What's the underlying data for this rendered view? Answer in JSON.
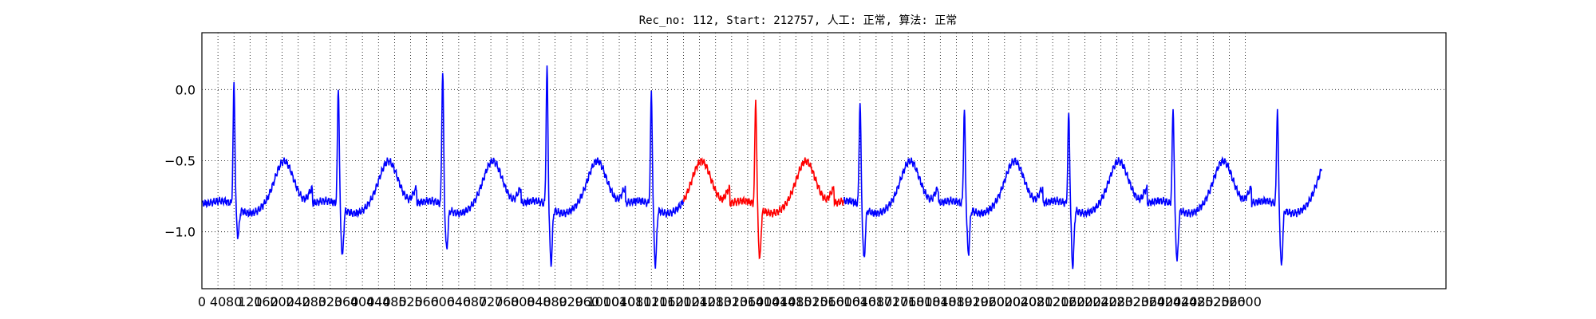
{
  "chart_data": {
    "type": "line",
    "title": "Rec_no: 112, Start: 212757, 人工: 正常, 算法: 正常",
    "xlabel": "",
    "ylabel": "",
    "xlim": [
      0,
      3100
    ],
    "ylim": [
      -1.4,
      0.4
    ],
    "yticks": [
      0.0,
      -0.5,
      -1.0
    ],
    "ytick_labels": [
      "0.0",
      "−0.5",
      "−1.0"
    ],
    "xticks": [
      0,
      40,
      80,
      120,
      160,
      200,
      240,
      280,
      320,
      360,
      400,
      440,
      480,
      520,
      560,
      600,
      640,
      680,
      720,
      760,
      800,
      840,
      880,
      920,
      960,
      1000,
      1040,
      1080,
      1120,
      1160,
      1200,
      1240,
      1280,
      1320,
      1360,
      1400,
      1440,
      1480,
      1520,
      1560,
      1600,
      1640,
      1680,
      1720,
      1760,
      1800,
      1840,
      1880,
      1920,
      1960,
      2000,
      2040,
      2080,
      2120,
      2160,
      2200,
      2240,
      2280,
      2320,
      2360,
      2400,
      2440,
      2480,
      2520,
      2560,
      2600
    ],
    "grid": true,
    "line_colors": {
      "normal": "#0000ff",
      "highlight": "#ff0000"
    },
    "highlight_range": [
      1200,
      1600
    ],
    "beat_period": 260,
    "beat_peaks": [
      {
        "x": 80,
        "peak": 0.11,
        "trough": -1.0
      },
      {
        "x": 340,
        "peak": 0.09,
        "trough": -1.14
      },
      {
        "x": 600,
        "peak": 0.2,
        "trough": -1.09
      },
      {
        "x": 860,
        "peak": 0.22,
        "trough": -1.19
      },
      {
        "x": 1120,
        "peak": 0.04,
        "trough": -1.2
      },
      {
        "x": 1380,
        "peak": 0.0,
        "trough": -1.16
      },
      {
        "x": 1640,
        "peak": -0.02,
        "trough": -1.16
      },
      {
        "x": 1900,
        "peak": -0.08,
        "trough": -1.12
      },
      {
        "x": 2160,
        "peak": -0.1,
        "trough": -1.21
      },
      {
        "x": 2420,
        "peak": -0.06,
        "trough": -1.17
      },
      {
        "x": 2680,
        "peak": -0.07,
        "trough": -1.21
      }
    ],
    "series_end_x": 2790,
    "baseline": -0.75
  }
}
